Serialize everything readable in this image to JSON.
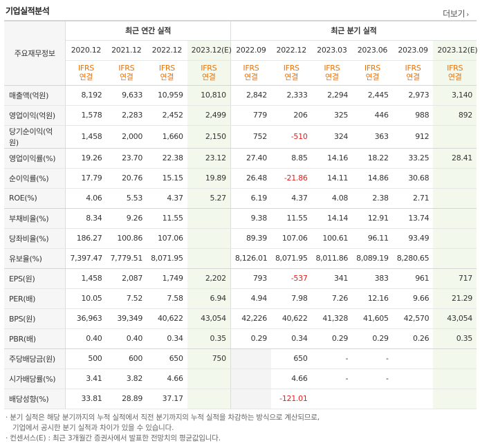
{
  "header": {
    "title": "기업실적분석",
    "more_label": "더보기"
  },
  "table": {
    "corner_label": "주요재무정보",
    "group_annual": "최근 연간 실적",
    "group_quarter": "최근 분기 실적",
    "periods": [
      "2020.12",
      "2021.12",
      "2022.12",
      "2023.12(E)",
      "2022.09",
      "2022.12",
      "2023.03",
      "2023.06",
      "2023.09",
      "2023.12(E)"
    ],
    "ifrs_line1": "IFRS",
    "ifrs_line2": "연결",
    "rows": [
      {
        "label": "매출액(억원)",
        "values": [
          "8,192",
          "9,633",
          "10,959",
          "10,810",
          "2,842",
          "2,333",
          "2,294",
          "2,445",
          "2,973",
          "3,140"
        ]
      },
      {
        "label": "영업이익(억원)",
        "values": [
          "1,578",
          "2,283",
          "2,452",
          "2,499",
          "779",
          "206",
          "325",
          "446",
          "988",
          "892"
        ]
      },
      {
        "label": "당기순이익(억원)",
        "values": [
          "1,458",
          "2,000",
          "1,660",
          "2,150",
          "752",
          "-510",
          "324",
          "363",
          "912",
          ""
        ]
      },
      {
        "label": "영업이익률(%)",
        "values": [
          "19.26",
          "23.70",
          "22.38",
          "23.12",
          "27.40",
          "8.85",
          "14.16",
          "18.22",
          "33.25",
          "28.41"
        ]
      },
      {
        "label": "순이익률(%)",
        "values": [
          "17.79",
          "20.76",
          "15.15",
          "19.89",
          "26.48",
          "-21.86",
          "14.11",
          "14.86",
          "30.68",
          ""
        ]
      },
      {
        "label": "ROE(%)",
        "values": [
          "4.06",
          "5.53",
          "4.37",
          "5.27",
          "6.19",
          "4.37",
          "4.08",
          "2.38",
          "2.71",
          ""
        ]
      },
      {
        "label": "부채비율(%)",
        "values": [
          "8.34",
          "9.26",
          "11.55",
          "",
          "9.38",
          "11.55",
          "14.14",
          "12.91",
          "13.74",
          ""
        ]
      },
      {
        "label": "당좌비율(%)",
        "values": [
          "186.27",
          "100.86",
          "107.06",
          "",
          "89.39",
          "107.06",
          "100.61",
          "96.11",
          "93.49",
          ""
        ]
      },
      {
        "label": "유보율(%)",
        "values": [
          "7,397.47",
          "7,779.51",
          "8,071.95",
          "",
          "8,126.01",
          "8,071.95",
          "8,011.86",
          "8,089.19",
          "8,280.65",
          ""
        ]
      },
      {
        "label": "EPS(원)",
        "values": [
          "1,458",
          "2,087",
          "1,749",
          "2,202",
          "793",
          "-537",
          "341",
          "383",
          "961",
          "717"
        ]
      },
      {
        "label": "PER(배)",
        "values": [
          "10.05",
          "7.52",
          "7.58",
          "6.94",
          "4.94",
          "7.98",
          "7.26",
          "12.16",
          "9.66",
          "21.29"
        ]
      },
      {
        "label": "BPS(원)",
        "values": [
          "36,963",
          "39,349",
          "40,622",
          "43,054",
          "42,226",
          "40,622",
          "41,328",
          "41,605",
          "42,570",
          "43,054"
        ]
      },
      {
        "label": "PBR(배)",
        "values": [
          "0.40",
          "0.40",
          "0.34",
          "0.35",
          "0.29",
          "0.34",
          "0.29",
          "0.29",
          "0.26",
          "0.35"
        ]
      },
      {
        "label": "주당배당금(원)",
        "values": [
          "500",
          "600",
          "650",
          "750",
          "",
          "650",
          "-",
          "-",
          "",
          ""
        ]
      },
      {
        "label": "시가배당률(%)",
        "values": [
          "3.41",
          "3.82",
          "4.66",
          "",
          "",
          "4.66",
          "-",
          "-",
          "",
          ""
        ]
      },
      {
        "label": "배당성향(%)",
        "values": [
          "33.81",
          "28.89",
          "37.17",
          "",
          "",
          "-121.01",
          "",
          "",
          "",
          ""
        ]
      }
    ]
  },
  "notes": [
    "· 분기 실적은 해당 분기까지의 누적 실적에서 직전 분기까지의 누적 실적을 차감하는 방식으로 계산되므로,",
    "  기업에서 공시한 분기 실적과 차이가 있을 수 있습니다.",
    "· 컨센서스(E) : 최근 3개월간 증권사에서 발표한 전망치의 평균값입니다."
  ]
}
